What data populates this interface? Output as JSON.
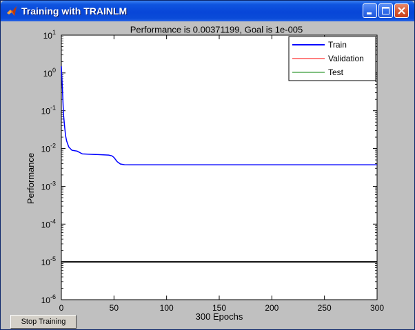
{
  "window": {
    "title": "Training with TRAINLM",
    "controls": [
      "minimize",
      "maximize",
      "close"
    ]
  },
  "colors": {
    "train": "#0000ff",
    "validation": "#ff0000",
    "test": "#008000",
    "goal": "#000000",
    "titlebar": "#0a4bd8",
    "figure_bg": "#c0c0c0"
  },
  "stop_button": {
    "label": "Stop Training"
  },
  "chart_data": {
    "type": "line",
    "title": "Performance is 0.00371199, Goal is 1e-005",
    "xlabel": "300 Epochs",
    "ylabel": "Performance",
    "xlim": [
      0,
      300
    ],
    "ylim": [
      1e-06,
      10
    ],
    "yscale": "log",
    "x_ticks": [
      "0",
      "50",
      "100",
      "150",
      "200",
      "250",
      "300"
    ],
    "y_ticks": [
      {
        "base": "10",
        "exp": "1"
      },
      {
        "base": "10",
        "exp": "0"
      },
      {
        "base": "10",
        "exp": "-1"
      },
      {
        "base": "10",
        "exp": "-2"
      },
      {
        "base": "10",
        "exp": "-3"
      },
      {
        "base": "10",
        "exp": "-4"
      },
      {
        "base": "10",
        "exp": "-5"
      },
      {
        "base": "10",
        "exp": "-6"
      }
    ],
    "legend": {
      "placement": "top-right",
      "entries": [
        "Train",
        "Validation",
        "Test"
      ]
    },
    "grid": false,
    "series": [
      {
        "name": "Train",
        "x": [
          0,
          1,
          2,
          3,
          4,
          5,
          7,
          10,
          15,
          20,
          25,
          30,
          35,
          40,
          45,
          48,
          50,
          53,
          56,
          60,
          65,
          70,
          100,
          150,
          200,
          250,
          300
        ],
        "values": [
          1.5,
          0.4,
          0.08,
          0.04,
          0.022,
          0.016,
          0.011,
          0.009,
          0.0085,
          0.0072,
          0.0071,
          0.007,
          0.0069,
          0.0068,
          0.0067,
          0.0064,
          0.0058,
          0.0045,
          0.0039,
          0.00372,
          0.00371,
          0.00371,
          0.00371,
          0.00371,
          0.00371,
          0.00371,
          0.00371199
        ]
      },
      {
        "name": "Goal",
        "x": [
          0,
          300
        ],
        "values": [
          1e-05,
          1e-05
        ]
      }
    ]
  }
}
